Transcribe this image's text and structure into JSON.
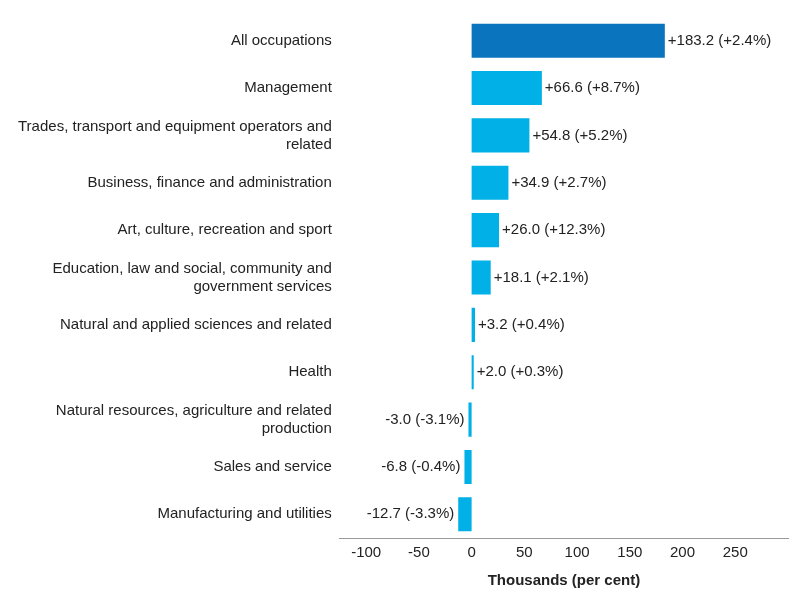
{
  "chart_data": {
    "type": "bar",
    "orientation": "horizontal",
    "xlabel": "Thousands (per cent)",
    "categories": [
      "All occupations",
      "Management",
      "Trades, transport and equipment operators and related",
      "Business, finance and administration",
      "Art, culture, recreation and sport",
      "Education, law and social, community and government services",
      "Natural and applied sciences and related",
      "Health",
      "Natural resources, agriculture and related production",
      "Sales and service",
      "Manufacturing and utilities"
    ],
    "values": [
      183.2,
      66.6,
      54.8,
      34.9,
      26.0,
      18.1,
      3.2,
      2.0,
      -3.0,
      -6.8,
      -12.7
    ],
    "value_labels": [
      "+183.2 (+2.4%)",
      "+66.6 (+8.7%)",
      "+54.8 (+5.2%)",
      "+34.9 (+2.7%)",
      "+26.0 (+12.3%)",
      "+18.1 (+2.1%)",
      "+3.2 (+0.4%)",
      "+2.0 (+0.3%)",
      "-3.0 (-3.1%)",
      "-6.8 (-0.4%)",
      "-12.7 (-3.3%)"
    ],
    "colors": [
      "#0a74be",
      "#00b0e6",
      "#00b0e6",
      "#00b0e6",
      "#00b0e6",
      "#00b0e6",
      "#00b0e6",
      "#00b0e6",
      "#00b0e6",
      "#00b0e6",
      "#00b0e6"
    ],
    "xlim": [
      -125,
      300
    ],
    "xticks": [
      -100,
      -50,
      0,
      50,
      100,
      150,
      200,
      250
    ],
    "grid": false,
    "data_labels": true
  }
}
